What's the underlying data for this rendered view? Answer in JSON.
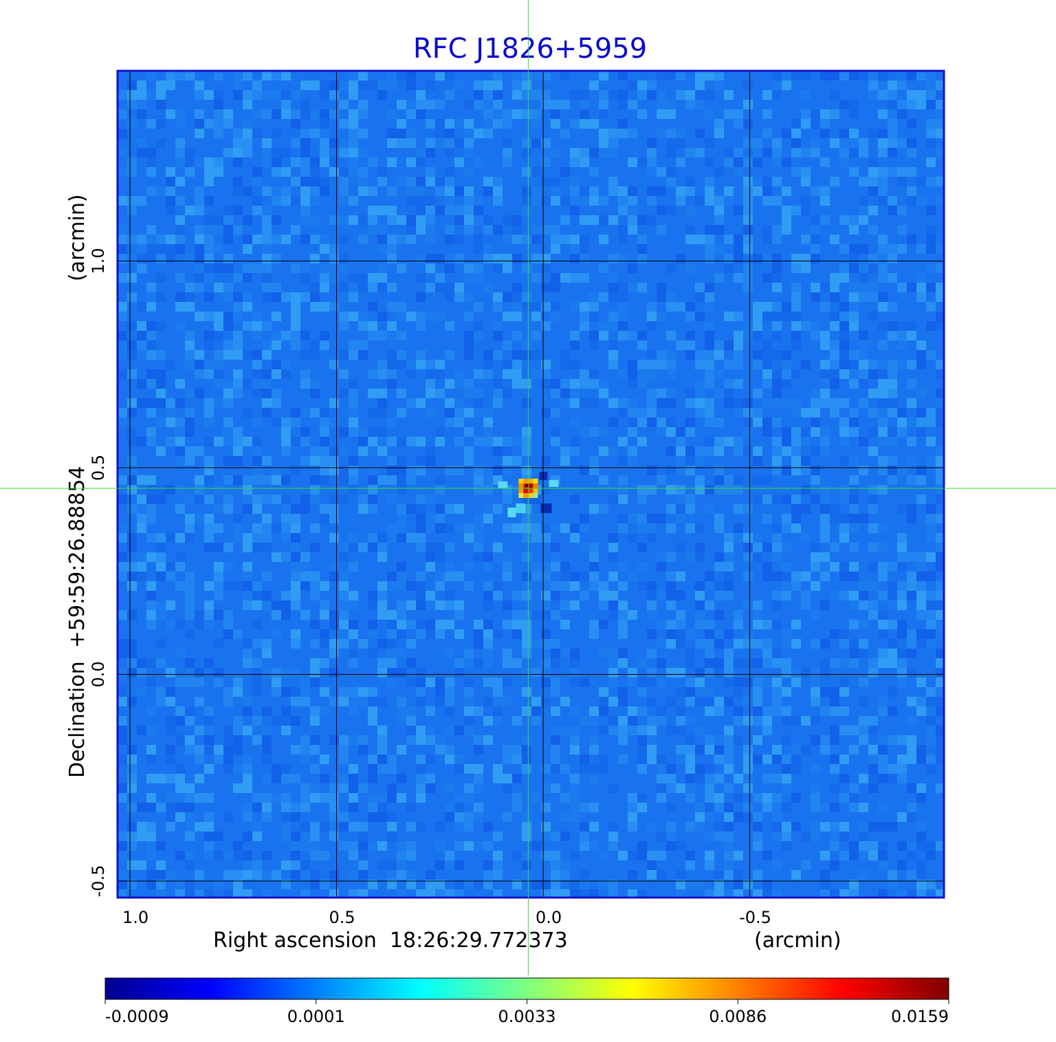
{
  "chart_data": {
    "type": "heatmap",
    "title": "RFC J1826+5959",
    "xlabel": "Right ascension  18:26:29.772373",
    "xunit": "(arcmin)",
    "ylabel": "Declination  +59:59:26.88854",
    "yunit": "(arcmin)",
    "x_ticks": [
      {
        "value": 1.0,
        "label": "1.0"
      },
      {
        "value": 0.5,
        "label": "0.5"
      },
      {
        "value": 0.0,
        "label": "0.0"
      },
      {
        "value": -0.5,
        "label": "-0.5"
      }
    ],
    "y_ticks": [
      {
        "value": 1.0,
        "label": "1.0"
      },
      {
        "value": 0.5,
        "label": "0.5"
      },
      {
        "value": 0.0,
        "label": "0.0"
      },
      {
        "value": -0.5,
        "label": "-0.5"
      }
    ],
    "xlim": [
      1.03,
      -0.97
    ],
    "ylim": [
      -0.54,
      1.46
    ],
    "grid": true,
    "crosshair": {
      "x": 0.036,
      "y": 0.45
    },
    "source_peak": {
      "x": 0.036,
      "y": 0.45,
      "value": 0.0159
    },
    "colormap": "jet",
    "colorbar_ticks": [
      "-0.0009",
      "0.0001",
      "0.0033",
      "0.0086",
      "0.0159"
    ],
    "colors": {
      "title": "#0b0bcc",
      "frame": "#1111cc",
      "grid": "#000000",
      "crosshair": "#33dd33",
      "background_map": "#1a73ee"
    }
  }
}
